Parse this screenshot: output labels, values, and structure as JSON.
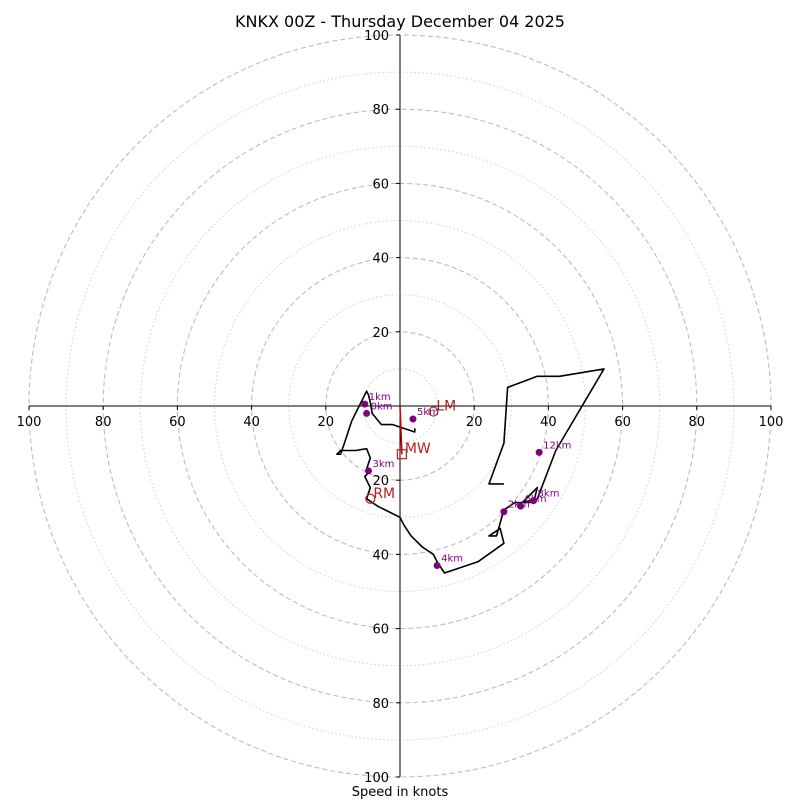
{
  "chart_data": {
    "type": "scatter",
    "subtype": "hodograph",
    "title": "KNKX 00Z - Thursday December 04 2025",
    "xlabel": "Speed in knots",
    "units": "knots",
    "axis_range": [
      -100,
      100
    ],
    "ring_major": [
      20,
      40,
      60,
      80,
      100
    ],
    "ring_minor": [
      10,
      30,
      50,
      70,
      90
    ],
    "tick_labels": {
      "x": [
        "100",
        "80",
        "60",
        "40",
        "20",
        "20",
        "40",
        "60",
        "80",
        "100"
      ],
      "x_values": [
        -100,
        -80,
        -60,
        -40,
        -20,
        20,
        40,
        60,
        80,
        100
      ],
      "y": [
        "100",
        "80",
        "60",
        "40",
        "20",
        "20",
        "40",
        "60",
        "80",
        "100"
      ],
      "y_values": [
        100,
        80,
        60,
        40,
        20,
        -20,
        -40,
        -60,
        -80,
        -100
      ]
    },
    "hodograph_line": {
      "color": "#000000",
      "u": [
        4,
        4,
        -2,
        -5,
        -7.5,
        -8,
        -8.5,
        -9,
        -10,
        -12,
        -13,
        -14,
        -15,
        -16,
        -17,
        -16,
        -12,
        -9,
        -8,
        -9,
        -8.5,
        -9.5,
        -9,
        -8,
        -9,
        -6,
        -2,
        0,
        1,
        3,
        6,
        9,
        10,
        12,
        15,
        21,
        28,
        27,
        24,
        26,
        28,
        31,
        36,
        37,
        35,
        33,
        37,
        42,
        55,
        43,
        37,
        29,
        28,
        24,
        28
      ],
      "v": [
        -6,
        -7,
        -5,
        -5,
        -2,
        1,
        3,
        4,
        2,
        -2,
        -4,
        -7,
        -10,
        -13,
        -13,
        -12,
        -12,
        -11.5,
        -14,
        -17,
        -18,
        -19,
        -20,
        -22,
        -25,
        -27,
        -29,
        -30,
        -32,
        -35,
        -38,
        -40,
        -42,
        -45,
        -44,
        -42,
        -37,
        -33,
        -35,
        -35,
        -28,
        -26,
        -26,
        -22,
        -24,
        -26,
        -25,
        -12,
        10,
        8,
        8,
        5,
        -10,
        -21,
        -21
      ]
    },
    "height_markers": [
      {
        "label": "0km",
        "u": -9,
        "v": -2
      },
      {
        "label": "1km",
        "u": -9.5,
        "v": 0.5
      },
      {
        "label": "2km",
        "u": 28,
        "v": -28.5
      },
      {
        "label": "3km",
        "u": -8.5,
        "v": -17.5
      },
      {
        "label": "4km",
        "u": 10,
        "v": -43
      },
      {
        "label": "5km",
        "u": 3.5,
        "v": -3.5
      },
      {
        "label": "6km",
        "u": 32.5,
        "v": -27
      },
      {
        "label": "8km",
        "u": 36,
        "v": -25.5
      },
      {
        "label": "12km",
        "u": 37.5,
        "v": -12.5
      }
    ],
    "storm_motion": [
      {
        "label": "LM",
        "u": 9,
        "v": -1.5,
        "marker": "circle"
      },
      {
        "label": "RM",
        "u": -8,
        "v": -25,
        "marker": "circle"
      },
      {
        "label": "MW",
        "u": 0.5,
        "v": -13,
        "marker": "square"
      }
    ],
    "mean_wind_vector": {
      "from_u": 0,
      "from_v": 0,
      "to_u": 0.5,
      "to_v": -13,
      "color": "#cc0000"
    }
  }
}
